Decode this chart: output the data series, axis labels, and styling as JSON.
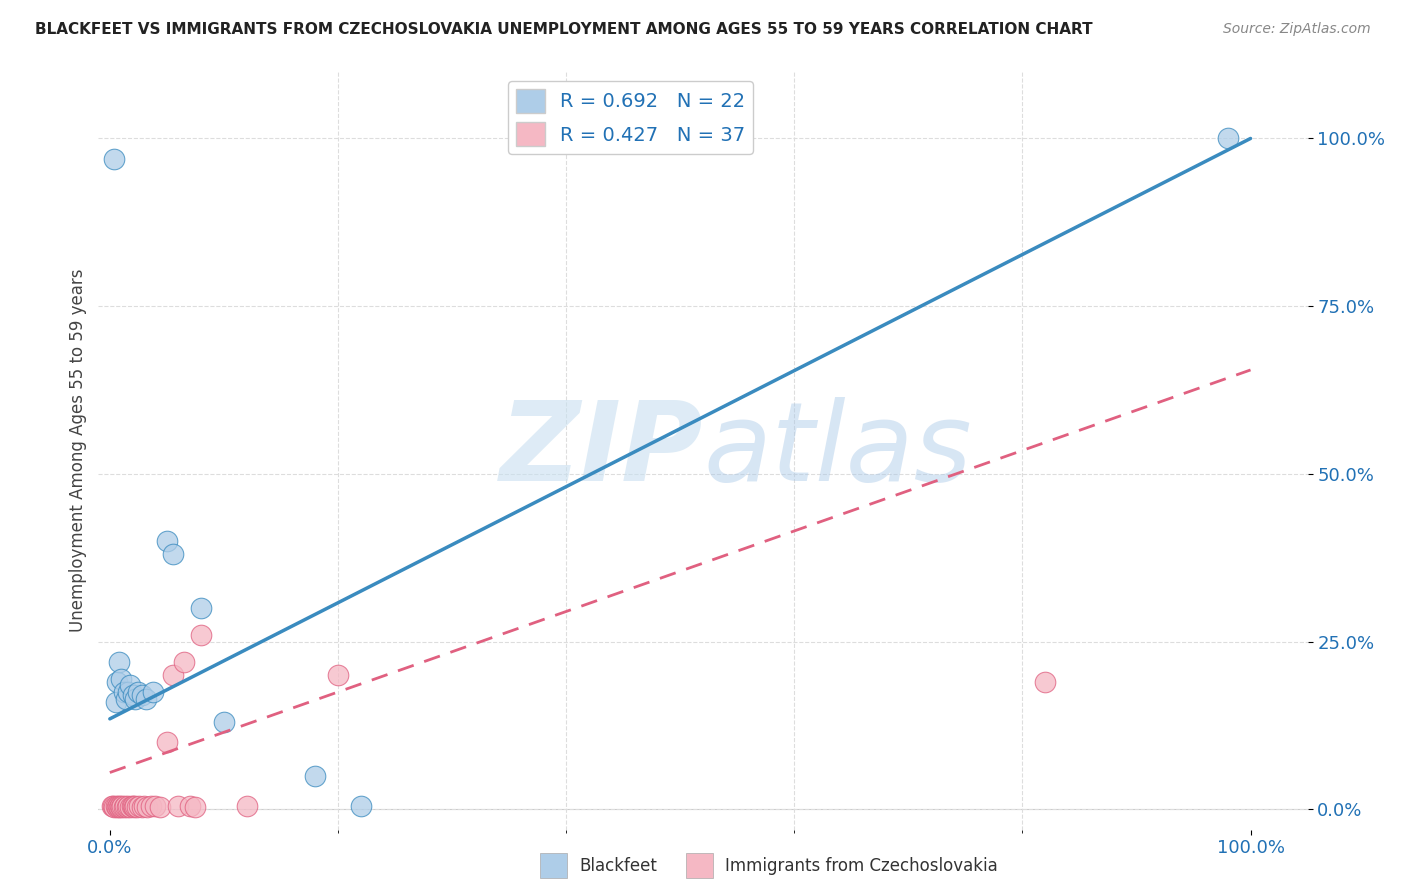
{
  "title": "BLACKFEET VS IMMIGRANTS FROM CZECHOSLOVAKIA UNEMPLOYMENT AMONG AGES 55 TO 59 YEARS CORRELATION CHART",
  "source": "Source: ZipAtlas.com",
  "ylabel": "Unemployment Among Ages 55 to 59 years",
  "ytick_labels": [
    "0.0%",
    "25.0%",
    "50.0%",
    "75.0%",
    "100.0%"
  ],
  "ytick_values": [
    0.0,
    0.25,
    0.5,
    0.75,
    1.0
  ],
  "xtick_labels": [
    "0.0%",
    "100.0%"
  ],
  "xtick_values": [
    0.0,
    1.0
  ],
  "xlim": [
    -0.01,
    1.05
  ],
  "ylim": [
    -0.03,
    1.1
  ],
  "blue_color": "#aecde8",
  "blue_color_line": "#3a8bbf",
  "pink_color": "#f5b8c4",
  "pink_color_line": "#e06080",
  "blue_R": 0.692,
  "blue_N": 22,
  "pink_R": 0.427,
  "pink_N": 37,
  "blue_line_x": [
    0.0,
    1.0
  ],
  "blue_line_y": [
    0.135,
    1.0
  ],
  "pink_line_x": [
    0.0,
    1.0
  ],
  "pink_line_y": [
    0.055,
    0.655
  ],
  "blackfeet_x": [
    0.004,
    0.005,
    0.006,
    0.008,
    0.01,
    0.012,
    0.014,
    0.016,
    0.018,
    0.02,
    0.022,
    0.025,
    0.028,
    0.032,
    0.038,
    0.05,
    0.055,
    0.08,
    0.1,
    0.18,
    0.22,
    0.98
  ],
  "blackfeet_y": [
    0.97,
    0.16,
    0.19,
    0.22,
    0.195,
    0.175,
    0.165,
    0.175,
    0.185,
    0.17,
    0.165,
    0.175,
    0.17,
    0.165,
    0.175,
    0.4,
    0.38,
    0.3,
    0.13,
    0.05,
    0.005,
    1.0
  ],
  "czech_x": [
    0.002,
    0.003,
    0.004,
    0.005,
    0.006,
    0.007,
    0.008,
    0.009,
    0.01,
    0.011,
    0.012,
    0.013,
    0.015,
    0.016,
    0.018,
    0.019,
    0.02,
    0.021,
    0.022,
    0.024,
    0.026,
    0.028,
    0.03,
    0.033,
    0.036,
    0.04,
    0.044,
    0.05,
    0.055,
    0.06,
    0.065,
    0.07,
    0.075,
    0.08,
    0.12,
    0.2,
    0.82
  ],
  "czech_y": [
    0.005,
    0.005,
    0.003,
    0.005,
    0.003,
    0.005,
    0.003,
    0.005,
    0.003,
    0.005,
    0.003,
    0.005,
    0.003,
    0.005,
    0.003,
    0.005,
    0.005,
    0.003,
    0.005,
    0.003,
    0.005,
    0.003,
    0.005,
    0.003,
    0.005,
    0.005,
    0.003,
    0.1,
    0.2,
    0.005,
    0.22,
    0.005,
    0.003,
    0.26,
    0.005,
    0.2,
    0.19
  ],
  "grid_color": "#dddddd",
  "watermark_color_zip": "#c8dff0",
  "watermark_color_atlas": "#a8c8e8"
}
